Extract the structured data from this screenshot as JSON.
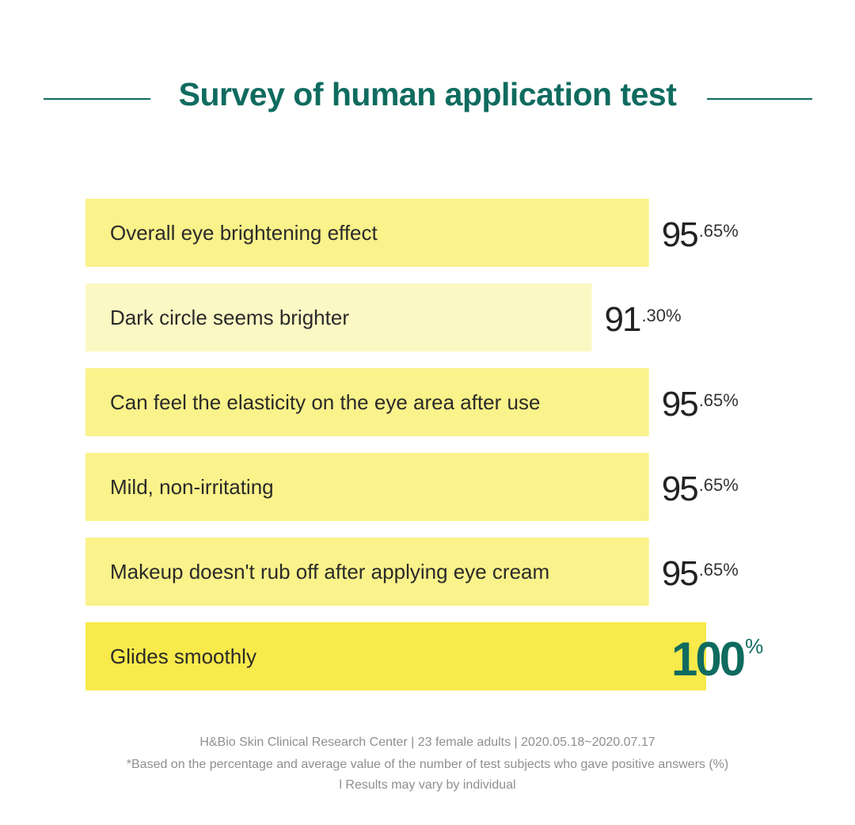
{
  "chart_data": {
    "type": "bar",
    "orientation": "horizontal",
    "title": "Survey of human application test",
    "categories": [
      "Overall eye brightening effect",
      "Dark circle seems brighter",
      "Can feel the elasticity on the eye area after use",
      "Mild, non-irritating",
      "Makeup doesn't rub off after applying eye cream",
      "Glides smoothly"
    ],
    "values": [
      95.65,
      91.3,
      95.65,
      95.65,
      95.65,
      100
    ],
    "value_labels": [
      {
        "int": "95",
        "dec": ".65%"
      },
      {
        "int": "91",
        "dec": ".30%"
      },
      {
        "int": "95",
        "dec": ".65%"
      },
      {
        "int": "95",
        "dec": ".65%"
      },
      {
        "int": "95",
        "dec": ".65%"
      },
      {
        "int": "100",
        "dec": "%"
      }
    ],
    "xlim": [
      0,
      100
    ],
    "highlight_index": 5,
    "colors": {
      "bar": "#faf28a",
      "bar_light": "#fcf8c4",
      "bar_highlight": "#f8ea4a",
      "accent": "#0f6b5f"
    }
  },
  "footer": {
    "line1": "H&Bio Skin Clinical Research Center | 23 female adults | 2020.05.18~2020.07.17",
    "line2": "*Based on the percentage and average value of the number of test subjects who gave positive answers (%)",
    "line3": "l Results may vary by individual"
  }
}
